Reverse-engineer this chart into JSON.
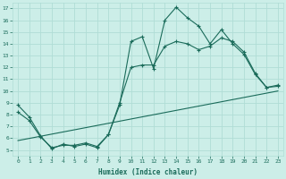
{
  "xlabel": "Humidex (Indice chaleur)",
  "background_color": "#cceee8",
  "grid_color": "#b0ddd6",
  "line_color": "#1a6b5a",
  "xlim": [
    -0.5,
    23.5
  ],
  "ylim": [
    4.5,
    17.5
  ],
  "yticks": [
    5,
    6,
    7,
    8,
    9,
    10,
    11,
    12,
    13,
    14,
    15,
    16,
    17
  ],
  "xticks": [
    0,
    1,
    2,
    3,
    4,
    5,
    6,
    7,
    8,
    9,
    10,
    11,
    12,
    13,
    14,
    15,
    16,
    17,
    18,
    19,
    20,
    21,
    22,
    23
  ],
  "line1_x": [
    0,
    1,
    2,
    3,
    4,
    5,
    6,
    7,
    8,
    9,
    10,
    11,
    12,
    13,
    14,
    15,
    16,
    17,
    18,
    19,
    20,
    21,
    22,
    23
  ],
  "line1_y": [
    8.8,
    7.8,
    6.2,
    5.1,
    5.5,
    5.3,
    5.5,
    5.2,
    6.3,
    8.8,
    14.2,
    14.6,
    11.9,
    16.0,
    17.1,
    16.2,
    15.5,
    14.0,
    15.2,
    14.0,
    13.1,
    11.4,
    10.3,
    10.4
  ],
  "line2_x": [
    0,
    1,
    2,
    3,
    4,
    5,
    6,
    7,
    8,
    9,
    10,
    11,
    12,
    13,
    14,
    15,
    16,
    17,
    18,
    19,
    20,
    21,
    22,
    23
  ],
  "line2_y": [
    8.2,
    7.5,
    6.1,
    5.2,
    5.4,
    5.4,
    5.6,
    5.3,
    6.3,
    9.0,
    12.0,
    12.2,
    12.2,
    13.8,
    14.2,
    14.0,
    13.5,
    13.8,
    14.5,
    14.2,
    13.3,
    11.5,
    10.3,
    10.5
  ],
  "line3_x": [
    0,
    23
  ],
  "line3_y": [
    5.8,
    10.0
  ]
}
